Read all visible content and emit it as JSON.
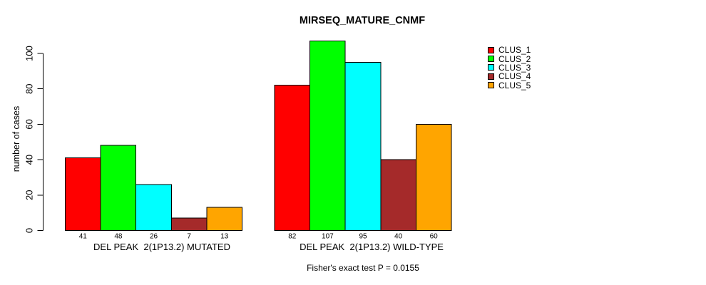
{
  "title": "MIRSEQ_MATURE_CNMF",
  "footer": "Fisher's exact test P = 0.0155",
  "chart_data": {
    "type": "bar",
    "title": "MIRSEQ_MATURE_CNMF",
    "xlabel": "",
    "ylabel": "number of cases",
    "ylim": [
      0,
      107
    ],
    "yticks": [
      0,
      20,
      40,
      60,
      80,
      100
    ],
    "grid": false,
    "bar_value_labels": true,
    "bar_border_color": "#000000",
    "legend_position": "top-right",
    "categories": [
      "DEL PEAK  2(1P13.2) MUTATED",
      "DEL PEAK  2(1P13.2) WILD-TYPE"
    ],
    "series": [
      {
        "name": "CLUS_1",
        "color": "#FF0000",
        "values": [
          41,
          82
        ]
      },
      {
        "name": "CLUS_2",
        "color": "#00FF00",
        "values": [
          48,
          107
        ]
      },
      {
        "name": "CLUS_3",
        "color": "#00FFFF",
        "values": [
          26,
          95
        ]
      },
      {
        "name": "CLUS_4",
        "color": "#A52A2A",
        "values": [
          7,
          40
        ]
      },
      {
        "name": "CLUS_5",
        "color": "#FFA500",
        "values": [
          13,
          60
        ]
      }
    ],
    "annotation": "Fisher's exact test P = 0.0155"
  }
}
